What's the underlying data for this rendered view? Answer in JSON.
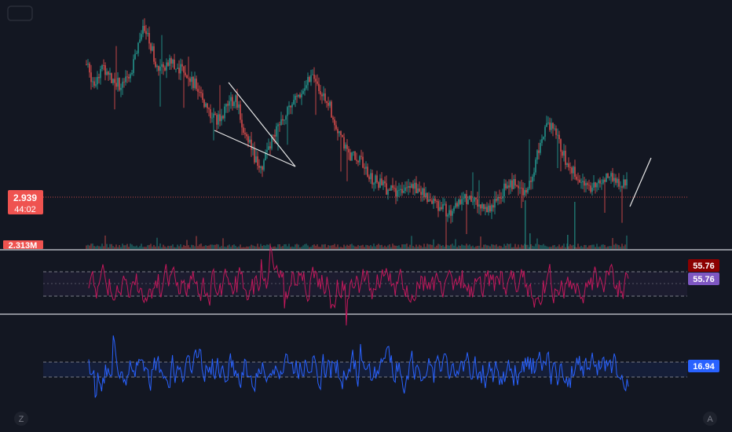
{
  "colors": {
    "background": "#131722",
    "up": "#26a69a",
    "down": "#ef5350",
    "price_line": "#ef5350",
    "rsi_line": "#c2185b",
    "rsi_label_dark": "#8b0000",
    "rsi_label_purple": "#7e57c2",
    "osc_line": "#2962ff",
    "osc_label": "#2962ff",
    "separator": "#d1d4dc",
    "drawing": "#e6e6e6"
  },
  "price_pane": {
    "last_price_label": "2.939",
    "countdown_label": "44:02",
    "volume_label": "2.313M"
  },
  "rsi_pane": {
    "value_label_1": "55.76",
    "value_label_2": "55.76",
    "band_upper": 70,
    "band_lower": 30
  },
  "osc_pane": {
    "value_label": "16.94"
  },
  "footer": {
    "left_badge": "Z",
    "right_badge": "A"
  },
  "chart_data": [
    {
      "type": "candlestick",
      "pane": "price",
      "last_price": 2.939,
      "series_shape": [
        [
          0,
          3.32
        ],
        [
          3,
          3.26
        ],
        [
          6,
          3.31
        ],
        [
          10,
          3.28
        ],
        [
          14,
          3.25
        ],
        [
          19,
          3.32
        ],
        [
          23,
          3.43
        ],
        [
          26,
          3.38
        ],
        [
          29,
          3.3
        ],
        [
          33,
          3.33
        ],
        [
          37,
          3.31
        ],
        [
          41,
          3.29
        ],
        [
          45,
          3.24
        ],
        [
          48,
          3.19
        ],
        [
          52,
          3.14
        ],
        [
          56,
          3.17
        ],
        [
          60,
          3.22
        ],
        [
          63,
          3.13
        ],
        [
          66,
          3.06
        ],
        [
          70,
          2.98
        ],
        [
          74,
          3.07
        ],
        [
          78,
          3.12
        ],
        [
          82,
          3.18
        ],
        [
          86,
          3.23
        ],
        [
          90,
          3.28
        ],
        [
          94,
          3.25
        ],
        [
          98,
          3.19
        ],
        [
          102,
          3.1
        ],
        [
          106,
          3.03
        ],
        [
          110,
          3.02
        ],
        [
          114,
          2.96
        ],
        [
          118,
          2.94
        ],
        [
          122,
          2.92
        ],
        [
          126,
          2.91
        ],
        [
          130,
          2.95
        ],
        [
          134,
          2.92
        ],
        [
          138,
          2.89
        ],
        [
          142,
          2.87
        ],
        [
          146,
          2.85
        ],
        [
          150,
          2.87
        ],
        [
          154,
          2.9
        ],
        [
          158,
          2.88
        ],
        [
          162,
          2.86
        ],
        [
          166,
          2.89
        ],
        [
          170,
          2.95
        ],
        [
          174,
          2.93
        ],
        [
          178,
          2.91
        ],
        [
          182,
          3.03
        ],
        [
          186,
          3.14
        ],
        [
          190,
          3.08
        ],
        [
          194,
          3.0
        ],
        [
          198,
          2.96
        ],
        [
          202,
          2.93
        ],
        [
          206,
          2.94
        ],
        [
          210,
          2.96
        ],
        [
          214,
          2.95
        ],
        [
          218,
          2.94
        ]
      ]
    },
    {
      "type": "bar",
      "pane": "volume",
      "last_value_label": "2.313M"
    },
    {
      "type": "line",
      "pane": "rsi",
      "bands": [
        30,
        70
      ],
      "last_value": 55.76
    },
    {
      "type": "line",
      "pane": "oscillator",
      "last_value": 16.94
    }
  ]
}
